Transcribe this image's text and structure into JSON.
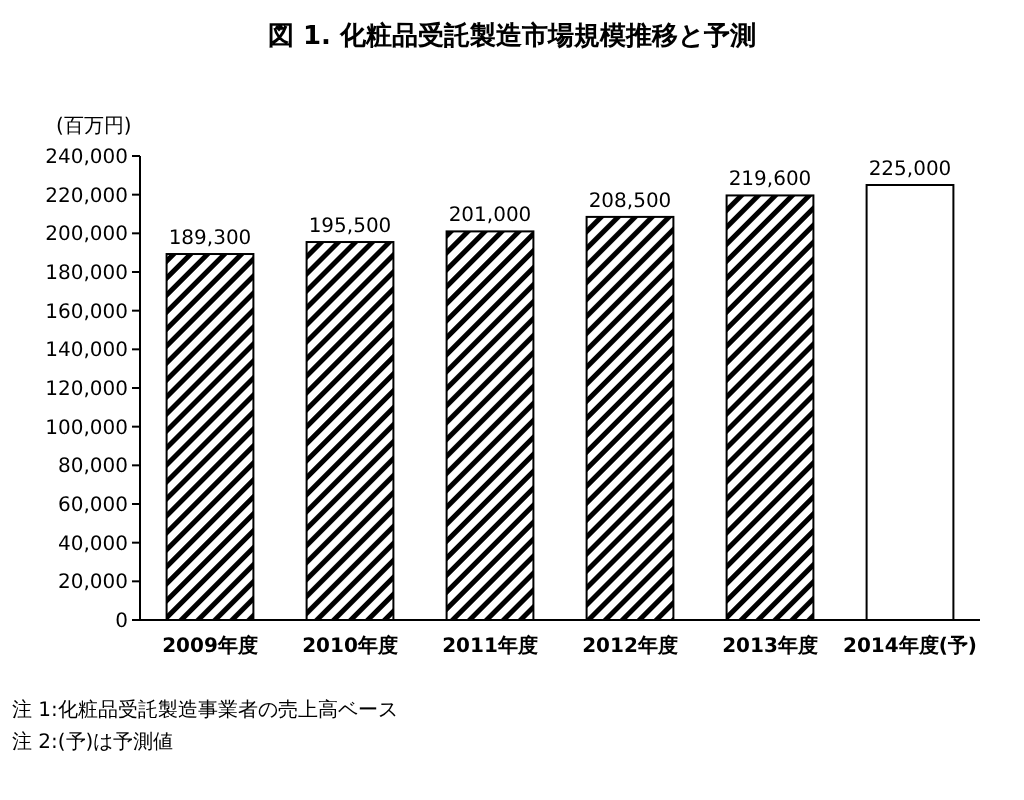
{
  "chart_data": {
    "type": "bar",
    "title": "図 1. 化粧品受託製造市場規模推移と予測",
    "ylabel": "(百万円)",
    "categories": [
      "2009年度",
      "2010年度",
      "2011年度",
      "2012年度",
      "2013年度",
      "2014年度(予)"
    ],
    "values": [
      189300,
      195500,
      201000,
      208500,
      219600,
      225000
    ],
    "value_labels": [
      "189,300",
      "195,500",
      "201,000",
      "208,500",
      "219,600",
      "225,000"
    ],
    "colors": [
      "#000000",
      "#000000",
      "#000000",
      "#000000",
      "#000000",
      "#ffffff"
    ],
    "ylim": [
      0,
      240000
    ],
    "yticks": [
      {
        "value": 0,
        "label": "0"
      },
      {
        "value": 20000,
        "label": "20,000"
      },
      {
        "value": 40000,
        "label": "40,000"
      },
      {
        "value": 60000,
        "label": "60,000"
      },
      {
        "value": 80000,
        "label": "80,000"
      },
      {
        "value": 100000,
        "label": "100,000"
      },
      {
        "value": 120000,
        "label": "120,000"
      },
      {
        "value": 140000,
        "label": "140,000"
      },
      {
        "value": 160000,
        "label": "160,000"
      },
      {
        "value": 180000,
        "label": "180,000"
      },
      {
        "value": 200000,
        "label": "200,000"
      },
      {
        "value": 220000,
        "label": "220,000"
      },
      {
        "value": 240000,
        "label": "240,000"
      }
    ],
    "grid": false,
    "annotations": [
      "注 1:化粧品受託製造事業者の売上高ベース",
      "注 2:(予)は予測値"
    ]
  }
}
